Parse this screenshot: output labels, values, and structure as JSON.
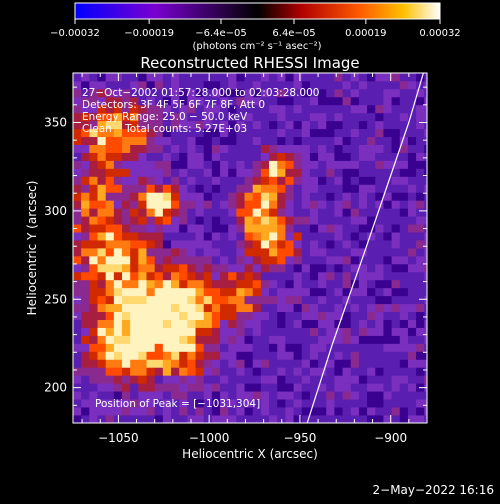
{
  "chart_data": {
    "type": "heatmap",
    "title": "Reconstructed RHESSI Image",
    "xlabel": "Heliocentric X (arcsec)",
    "ylabel": "Heliocentric Y (arcsec)",
    "xlim": [
      -1075,
      -880
    ],
    "ylim": [
      180,
      378
    ],
    "xticks": [
      -1050,
      -1000,
      -950,
      -900
    ],
    "xtick_labels": [
      "−1050",
      "−1000",
      "−950",
      "−900"
    ],
    "yticks": [
      200,
      250,
      300,
      350
    ],
    "ytick_labels": [
      "200",
      "250",
      "300",
      "350"
    ],
    "colorbar": {
      "range": [
        -0.00032,
        0.00032
      ],
      "ticks": [
        -0.00032,
        -0.00019,
        -6.4e-05,
        6.4e-05,
        0.00019,
        0.00032
      ],
      "tick_labels": [
        "−0.00032",
        "−0.00019",
        "−6.4e−05",
        "6.4e−05",
        "0.00019",
        "0.00032"
      ],
      "units_label": "(photons cm⁻² s⁻¹ asec⁻²)"
    },
    "annotations": [
      "27−Oct−2002 01:57:28.000 to 02:03:28.000",
      "Detectors: 3F 4F 5F 6F 7F 8F, Att 0",
      "Energy Range: 25.0 − 50.0 keV",
      "Clean    Total counts: 5.27E+03"
    ],
    "peak_label": "Position of Peak = [−1031,304]",
    "peak": [
      -1031,
      304
    ],
    "limb_curve": {
      "x": [
        -946,
        -932,
        -915,
        -900,
        -890,
        -882
      ],
      "y": [
        180,
        225,
        275,
        320,
        350,
        378
      ]
    },
    "bright_regions": [
      {
        "x": -1030,
        "y": 302,
        "radius": 10,
        "level": 1.0
      },
      {
        "x": -1055,
        "y": 340,
        "radius": 18,
        "level": 0.7
      },
      {
        "x": -1058,
        "y": 275,
        "radius": 18,
        "level": 0.65
      },
      {
        "x": -1040,
        "y": 245,
        "radius": 22,
        "level": 0.75
      },
      {
        "x": -1015,
        "y": 245,
        "radius": 18,
        "level": 0.7
      },
      {
        "x": -1050,
        "y": 220,
        "radius": 18,
        "level": 0.65
      },
      {
        "x": -1020,
        "y": 220,
        "radius": 16,
        "level": 0.6
      },
      {
        "x": -975,
        "y": 300,
        "radius": 12,
        "level": 0.7
      },
      {
        "x": -968,
        "y": 280,
        "radius": 12,
        "level": 0.65
      },
      {
        "x": -965,
        "y": 320,
        "radius": 10,
        "level": 0.55
      },
      {
        "x": -985,
        "y": 250,
        "radius": 12,
        "level": 0.5
      },
      {
        "x": -1065,
        "y": 305,
        "radius": 12,
        "level": 0.55
      }
    ]
  },
  "footer": {
    "timestamp": "2−May−2022 16:16"
  }
}
